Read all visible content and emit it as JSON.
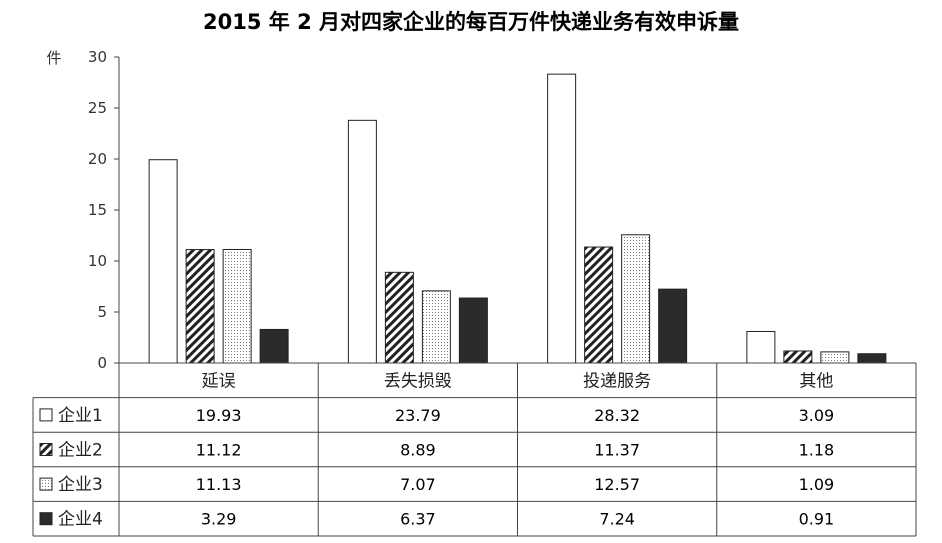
{
  "chart_data": {
    "type": "bar",
    "title": "2015 年 2 月对四家企业的每百万件快递业务有效申诉量",
    "ylabel": "件",
    "ylim": [
      0,
      30
    ],
    "yticks": [
      0,
      5,
      10,
      15,
      20,
      25,
      30
    ],
    "categories": [
      "延误",
      "丢失损毁",
      "投递服务",
      "其他"
    ],
    "series": [
      {
        "name": "企业1",
        "pattern": "white",
        "values": [
          19.93,
          23.79,
          28.32,
          3.09
        ],
        "labels": [
          "19.93",
          "23.79",
          "28.32",
          "3.09"
        ]
      },
      {
        "name": "企业2",
        "pattern": "hatch",
        "values": [
          11.12,
          8.89,
          11.37,
          1.18
        ],
        "labels": [
          "11.12",
          "8.89",
          "11.37",
          "1.18"
        ]
      },
      {
        "name": "企业3",
        "pattern": "dots",
        "values": [
          11.13,
          7.07,
          12.57,
          1.09
        ],
        "labels": [
          "11.13",
          "7.07",
          "12.57",
          "1.09"
        ]
      },
      {
        "name": "企业4",
        "pattern": "black",
        "values": [
          3.29,
          6.37,
          7.24,
          0.91
        ],
        "labels": [
          "3.29",
          "6.37",
          "7.24",
          "0.91"
        ]
      }
    ],
    "grid": false,
    "legend_position": "data-table-left"
  }
}
